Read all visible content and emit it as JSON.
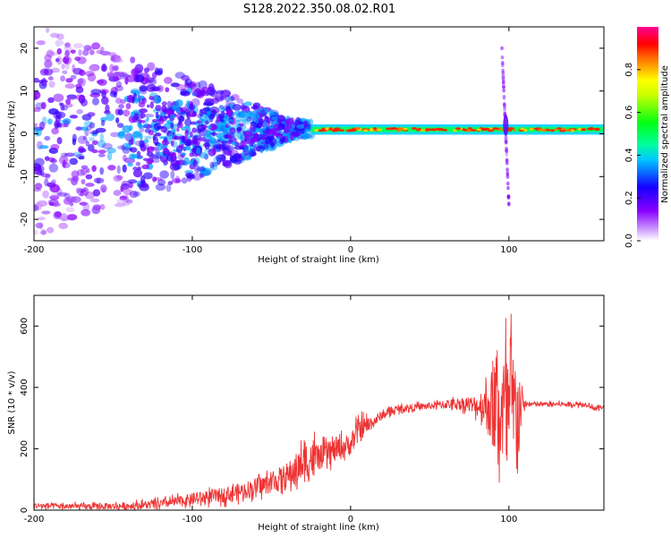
{
  "title": "S128.2022.350.08.02.R01",
  "chart_data": [
    {
      "type": "heatmap",
      "xlabel": "Height of straight line (km)",
      "ylabel": "Frequency (Hz)",
      "xlim": [
        -200,
        160
      ],
      "ylim": [
        -25,
        25
      ],
      "x_ticks": [
        -200,
        -100,
        0,
        100
      ],
      "y_ticks": [
        -20,
        -10,
        0,
        10,
        20
      ],
      "colorbar": {
        "label": "Normalized spectral amplitude",
        "range": [
          0,
          1
        ],
        "ticks": [
          0.0,
          0.2,
          0.4,
          0.6,
          0.8
        ],
        "tick_labels": [
          "0.0",
          "0.2",
          "0.4",
          "0.6",
          "0.8"
        ],
        "colors": [
          "#ffffff",
          "#8a00ff",
          "#1400ff",
          "#00ffff",
          "#00ff2a",
          "#ffff00",
          "#ff1400",
          "#ff008a"
        ]
      },
      "features": {
        "carrier_line": {
          "x_range": [
            -25,
            160
          ],
          "frequency_hz": 1,
          "amplitude": 0.95
        },
        "spur_near_100km": {
          "x": 98,
          "frequency_range_hz": [
            -17,
            20
          ]
        },
        "noise_region": {
          "x_range": [
            -200,
            -30
          ],
          "frequency_range_hz": [
            -25,
            25
          ]
        }
      }
    },
    {
      "type": "line",
      "xlabel": "Height of straight line (km)",
      "ylabel": "SNR (10 * v/v)",
      "xlim": [
        -200,
        160
      ],
      "ylim": [
        0,
        700
      ],
      "x_ticks": [
        -200,
        -100,
        0,
        100
      ],
      "y_ticks": [
        0,
        200,
        400,
        600
      ],
      "series": [
        {
          "color": "#ee3333",
          "x": [
            -200,
            -180,
            -160,
            -140,
            -120,
            -100,
            -80,
            -70,
            -60,
            -50,
            -40,
            -30,
            -25,
            -20,
            -10,
            0,
            5,
            10,
            15,
            20,
            30,
            40,
            50,
            60,
            70,
            80,
            85,
            90,
            95,
            100,
            105,
            110,
            120,
            130,
            140,
            150,
            155,
            160
          ],
          "values": [
            15,
            12,
            12,
            14,
            20,
            35,
            50,
            60,
            75,
            90,
            110,
            150,
            170,
            170,
            195,
            215,
            260,
            275,
            290,
            310,
            330,
            335,
            340,
            345,
            348,
            340,
            345,
            330,
            320,
            300,
            330,
            345,
            345,
            345,
            345,
            345,
            330,
            340
          ],
          "spread": [
            10,
            10,
            10,
            12,
            15,
            20,
            25,
            28,
            30,
            35,
            45,
            60,
            80,
            40,
            40,
            35,
            45,
            30,
            20,
            15,
            12,
            12,
            12,
            15,
            20,
            35,
            70,
            140,
            200,
            250,
            180,
            10,
            8,
            8,
            8,
            8,
            10,
            8
          ]
        }
      ]
    }
  ]
}
